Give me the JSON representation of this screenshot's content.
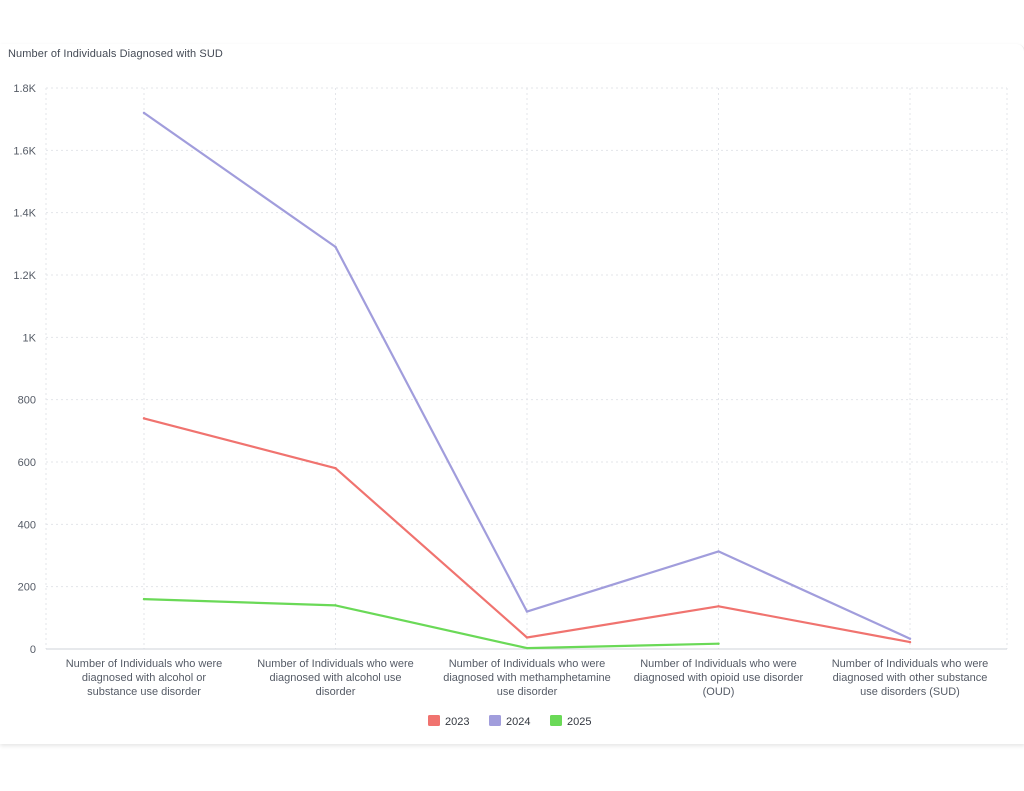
{
  "chart_data": {
    "type": "line",
    "title": "Number of Individuals Diagnosed with SUD",
    "categories": [
      [
        "Number of Individuals who were",
        "diagnosed with alcohol or",
        "substance use disorder"
      ],
      [
        "Number of Individuals who were",
        "diagnosed with alcohol use",
        "disorder"
      ],
      [
        "Number of Individuals who were",
        "diagnosed with methamphetamine",
        "use disorder"
      ],
      [
        "Number of Individuals who were",
        "diagnosed with opioid use disorder",
        "(OUD)"
      ],
      [
        "Number of Individuals who were",
        "diagnosed with other substance",
        "use disorders (SUD)"
      ]
    ],
    "ylim": [
      0,
      1800
    ],
    "yticks": [
      {
        "value": 0,
        "label": "0"
      },
      {
        "value": 200,
        "label": "200"
      },
      {
        "value": 400,
        "label": "400"
      },
      {
        "value": 600,
        "label": "600"
      },
      {
        "value": 800,
        "label": "800"
      },
      {
        "value": 1000,
        "label": "1K"
      },
      {
        "value": 1200,
        "label": "1.2K"
      },
      {
        "value": 1400,
        "label": "1.4K"
      },
      {
        "value": 1600,
        "label": "1.6K"
      },
      {
        "value": 1800,
        "label": "1.8K"
      }
    ],
    "grid": true,
    "legend": "bottom-center",
    "series": [
      {
        "name": "2023",
        "color": "#f0736f",
        "values": [
          740,
          580,
          37,
          137,
          22
        ]
      },
      {
        "name": "2024",
        "color": "#a19ddc",
        "values": [
          1720,
          1290,
          120,
          313,
          33
        ]
      },
      {
        "name": "2025",
        "color": "#6ad957",
        "values": [
          160,
          140,
          3,
          17,
          null
        ]
      }
    ]
  }
}
